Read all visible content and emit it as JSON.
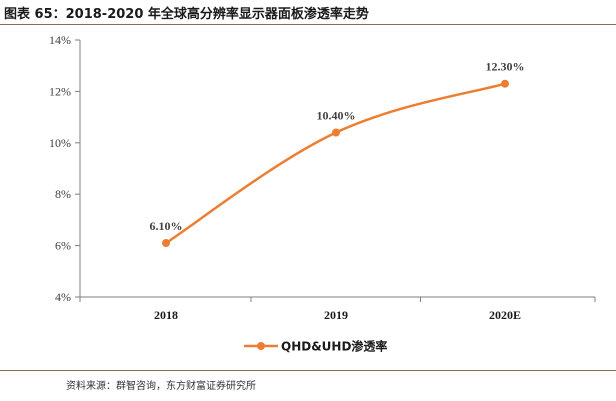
{
  "figure": {
    "title": "图表 65：2018-2020 年全球高分辨率显示器面板渗透率走势",
    "source": "资料来源：群智咨询，东方财富证券研究所"
  },
  "colors": {
    "series": "#ed7d31",
    "axis": "#7f7f7f",
    "text": "#404040",
    "rule": "#8c6b4a"
  },
  "chart_data": {
    "type": "line",
    "categories": [
      "2018",
      "2019",
      "2020E"
    ],
    "series": [
      {
        "name": "QHD&UHD渗透率",
        "values": [
          6.1,
          10.4,
          12.3
        ],
        "labels": [
          "6.10%",
          "10.40%",
          "12.30%"
        ]
      }
    ],
    "ylim": [
      4,
      14
    ],
    "yticks": [
      "4%",
      "6%",
      "8%",
      "10%",
      "12%",
      "14%"
    ],
    "smooth": true,
    "grid": false,
    "legend_position": "bottom"
  }
}
